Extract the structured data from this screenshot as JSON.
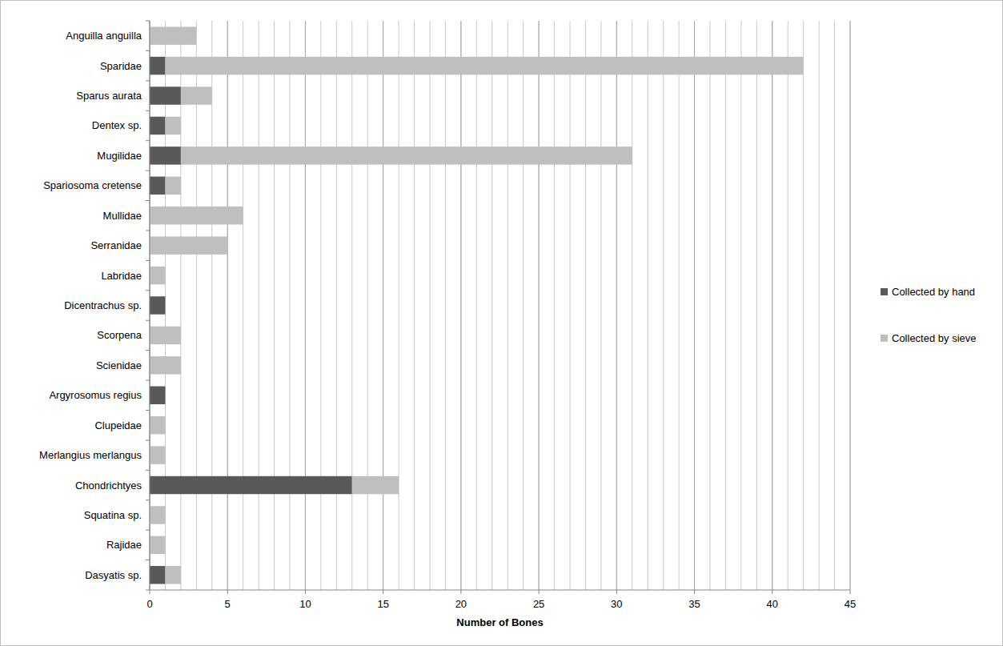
{
  "chart_data": {
    "type": "bar",
    "orientation": "horizontal",
    "stacked": true,
    "x_label": "Number of Bones",
    "categories": [
      "Anguilla anguilla",
      "Sparidae",
      "Sparus aurata",
      "Dentex sp.",
      "Mugilidae",
      "Spariosoma cretense",
      "Mullidae",
      "Serranidae",
      "Labridae",
      "Dicentrachus sp.",
      "Scorpena",
      "Scienidae",
      "Argyrosomus regius",
      "Clupeidae",
      "Merlangius merlangus",
      "Chondrichtyes",
      "Squatina sp.",
      "Rajidae",
      "Dasyatis sp."
    ],
    "series": [
      {
        "name": "Collected by hand",
        "color": "#595959",
        "values": [
          0,
          1,
          2,
          1,
          2,
          1,
          0,
          0,
          0,
          1,
          0,
          0,
          1,
          0,
          0,
          13,
          0,
          0,
          1
        ]
      },
      {
        "name": "Collected by sieve",
        "color": "#bfbfbf",
        "values": [
          3,
          41,
          2,
          1,
          29,
          1,
          6,
          5,
          1,
          0,
          2,
          2,
          0,
          1,
          1,
          3,
          1,
          1,
          1
        ]
      }
    ],
    "xlim": [
      0,
      45
    ],
    "xticks": [
      0,
      5,
      10,
      15,
      20,
      25,
      30,
      35,
      40,
      45
    ],
    "grid": true,
    "legend": "right"
  }
}
